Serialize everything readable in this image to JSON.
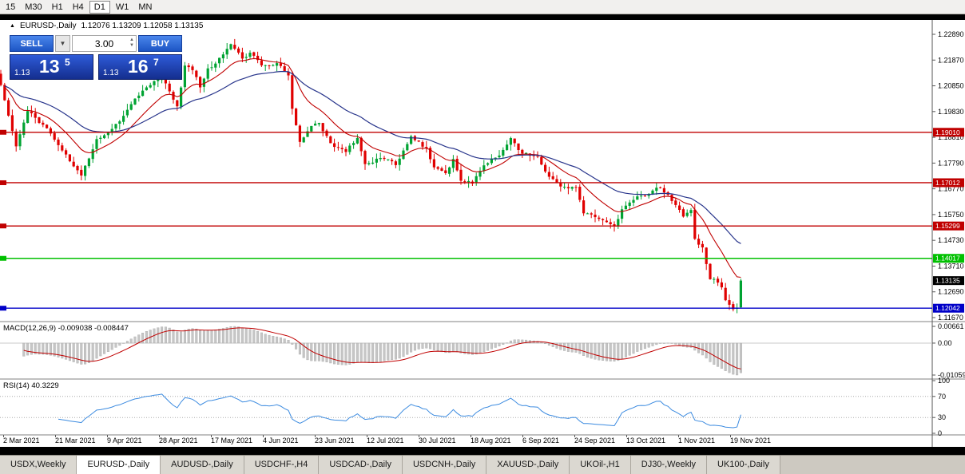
{
  "toolbar": {
    "timeframes": [
      "15",
      "M30",
      "H1",
      "H4",
      "D1",
      "W1",
      "MN"
    ],
    "active": "D1"
  },
  "chart": {
    "symbol_title": "EURUSD-,Daily",
    "ohlc_text": "1.12076 1.13209 1.12058 1.13135"
  },
  "trade_panel": {
    "sell_label": "SELL",
    "buy_label": "BUY",
    "volume": "3.00",
    "sell_price": {
      "prefix": "1.13",
      "pips": "13",
      "sup": "5"
    },
    "buy_price": {
      "prefix": "1.13",
      "pips": "16",
      "sup": "7"
    }
  },
  "tabs": {
    "items": [
      "USDX,Weekly",
      "EURUSD-,Daily",
      "AUDUSD-,Daily",
      "USDCHF-,H4",
      "USDCAD-,Daily",
      "USDCNH-,Daily",
      "XAUUSD-,Daily",
      "UKOil-,H1",
      "DJ30-,Weekly",
      "UK100-,Daily"
    ],
    "active_index": 1
  },
  "chart_data": {
    "type": "candlestick",
    "symbol": "EURUSD-",
    "timeframe": "Daily",
    "last_candle": {
      "open": 1.12076,
      "high": 1.13209,
      "low": 1.12058,
      "close": 1.13135
    },
    "price_axis_labels": [
      "1.22890",
      "1.21870",
      "1.20850",
      "1.19830",
      "1.18810",
      "1.17790",
      "1.16770",
      "1.15750",
      "1.14730",
      "1.13710",
      "1.12690",
      "1.11670"
    ],
    "time_axis": [
      "2 Mar 2021",
      "21 Mar 2021",
      "9 Apr 2021",
      "28 Apr 2021",
      "17 May 2021",
      "4 Jun 2021",
      "23 Jun 2021",
      "12 Jul 2021",
      "30 Jul 2021",
      "18 Aug 2021",
      "6 Sep 2021",
      "24 Sep 2021",
      "13 Oct 2021",
      "1 Nov 2021",
      "19 Nov 2021"
    ],
    "close_path": [
      [
        0,
        1.2088
      ],
      [
        2,
        1.1967
      ],
      [
        4,
        1.1845
      ],
      [
        7,
        1.1985
      ],
      [
        12,
        1.1917
      ],
      [
        15,
        1.185
      ],
      [
        19,
        1.1766
      ],
      [
        21,
        1.173
      ],
      [
        25,
        1.1874
      ],
      [
        28,
        1.1899
      ],
      [
        32,
        1.1966
      ],
      [
        35,
        1.2034
      ],
      [
        39,
        1.2088
      ],
      [
        42,
        1.2123
      ],
      [
        44,
        1.2063
      ],
      [
        46,
        1.2004
      ],
      [
        48,
        1.2165
      ],
      [
        50,
        1.2147
      ],
      [
        52,
        1.2079
      ],
      [
        54,
        1.2154
      ],
      [
        56,
        1.2173
      ],
      [
        60,
        1.225
      ],
      [
        63,
        1.2193
      ],
      [
        65,
        1.2216
      ],
      [
        68,
        1.2166
      ],
      [
        72,
        1.2175
      ],
      [
        75,
        1.2126
      ],
      [
        76,
        1.1994
      ],
      [
        78,
        1.1863
      ],
      [
        81,
        1.1926
      ],
      [
        83,
        1.1938
      ],
      [
        86,
        1.1858
      ],
      [
        90,
        1.1823
      ],
      [
        93,
        1.1878
      ],
      [
        95,
        1.1775
      ],
      [
        99,
        1.1799
      ],
      [
        101,
        1.1794
      ],
      [
        103,
        1.1771
      ],
      [
        107,
        1.1885
      ],
      [
        108,
        1.187
      ],
      [
        111,
        1.1838
      ],
      [
        113,
        1.1762
      ],
      [
        116,
        1.1739
      ],
      [
        118,
        1.1795
      ],
      [
        120,
        1.1709
      ],
      [
        123,
        1.1698
      ],
      [
        126,
        1.177
      ],
      [
        130,
        1.1809
      ],
      [
        133,
        1.1878
      ],
      [
        136,
        1.1817
      ],
      [
        140,
        1.1805
      ],
      [
        143,
        1.1725
      ],
      [
        146,
        1.1686
      ],
      [
        150,
        1.1683
      ],
      [
        152,
        1.158
      ],
      [
        156,
        1.1558
      ],
      [
        160,
        1.153
      ],
      [
        162,
        1.1596
      ],
      [
        165,
        1.1633
      ],
      [
        172,
        1.1682
      ],
      [
        176,
        1.1613
      ],
      [
        178,
        1.1567
      ],
      [
        180,
        1.1593
      ],
      [
        181,
        1.1479
      ],
      [
        183,
        1.1445
      ],
      [
        185,
        1.1319
      ],
      [
        186,
        1.132
      ],
      [
        188,
        1.1287
      ],
      [
        189,
        1.1236
      ],
      [
        191,
        1.12
      ],
      [
        192,
        1.1205
      ],
      [
        193,
        1.1313
      ]
    ],
    "levels": [
      {
        "label": "1.19010",
        "value": 1.1901,
        "color": "#c00000"
      },
      {
        "label": "1.17012",
        "value": 1.17012,
        "color": "#c00000"
      },
      {
        "label": "1.15299",
        "value": 1.15299,
        "color": "#c00000"
      },
      {
        "label": "1.14017",
        "value": 1.14017,
        "color": "#00c000"
      },
      {
        "label": "1.12042",
        "value": 1.12042,
        "color": "#0000c8"
      }
    ],
    "current_price": {
      "label": "1.13135",
      "value": 1.13135
    },
    "moving_averages": [
      {
        "type": "fast",
        "color": "#c00000"
      },
      {
        "type": "slow",
        "color": "#27348b"
      }
    ],
    "candle_colors": {
      "up": "#00a332",
      "down": "#e00000"
    },
    "indicators": {
      "macd": {
        "text": "MACD(12,26,9) -0.009038 -0.008447",
        "scale": [
          "0.00661",
          "0.00",
          "-0.01059"
        ]
      },
      "rsi": {
        "text": "RSI(14) 40.3229",
        "scale": [
          "100",
          "70",
          "30",
          "0"
        ]
      }
    }
  }
}
